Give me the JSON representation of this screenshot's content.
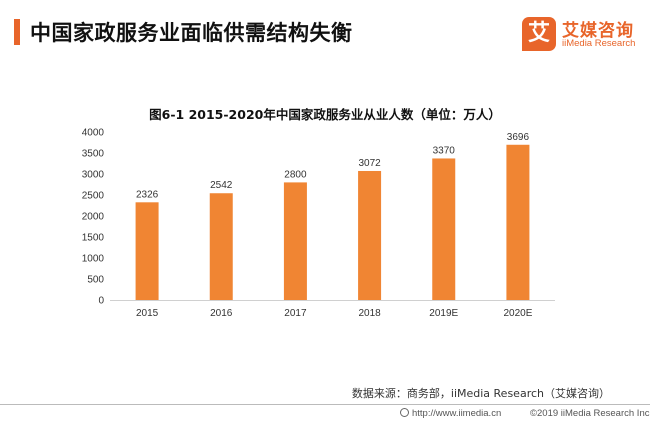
{
  "header": {
    "title": "中国家政服务业面临供需结构失衡"
  },
  "logo": {
    "badge_char": "艾",
    "name_cn": "艾媒咨询",
    "name_en": "iiMedia Research"
  },
  "colors": {
    "accent": "#e8652a",
    "bar": "#f08533"
  },
  "chart_data": {
    "type": "bar",
    "title": "图6-1 2015-2020年中国家政服务业从业人数（单位：万人）",
    "categories": [
      "2015",
      "2016",
      "2017",
      "2018",
      "2019E",
      "2020E"
    ],
    "values": [
      2326,
      2542,
      2800,
      3072,
      3370,
      3696
    ],
    "yticks": [
      0,
      500,
      1000,
      1500,
      2000,
      2500,
      3000,
      3500,
      4000
    ],
    "ylim": [
      0,
      4000
    ],
    "xlabel": "",
    "ylabel": "",
    "grid": false,
    "legend": "none",
    "data_labels": true
  },
  "source": {
    "text": "数据来源：商务部，iiMedia Research（艾媒咨询）"
  },
  "footer": {
    "url": "http://www.iimedia.cn",
    "copyright": "©2019  iiMedia Research  Inc"
  }
}
